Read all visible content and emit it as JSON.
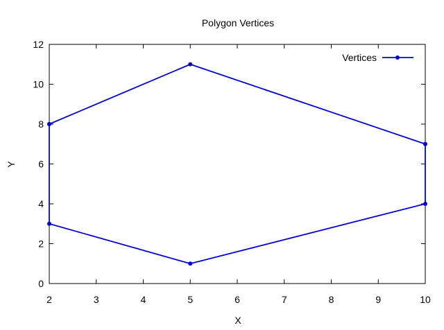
{
  "chart_data": {
    "type": "line",
    "title": "Polygon Vertices",
    "xlabel": "X",
    "ylabel": "Y",
    "xlim": [
      2,
      10
    ],
    "ylim": [
      0,
      12
    ],
    "xticks": [
      2,
      3,
      4,
      5,
      6,
      7,
      8,
      9,
      10
    ],
    "yticks": [
      0,
      2,
      4,
      6,
      8,
      10,
      12
    ],
    "grid": false,
    "legend": "top-right",
    "series": [
      {
        "name": "Vertices",
        "color": "#0000dd",
        "marker": "circle",
        "x": [
          2,
          5,
          10,
          10,
          5,
          2,
          2
        ],
        "y": [
          8,
          11,
          7,
          4,
          1,
          3,
          8
        ]
      }
    ]
  }
}
